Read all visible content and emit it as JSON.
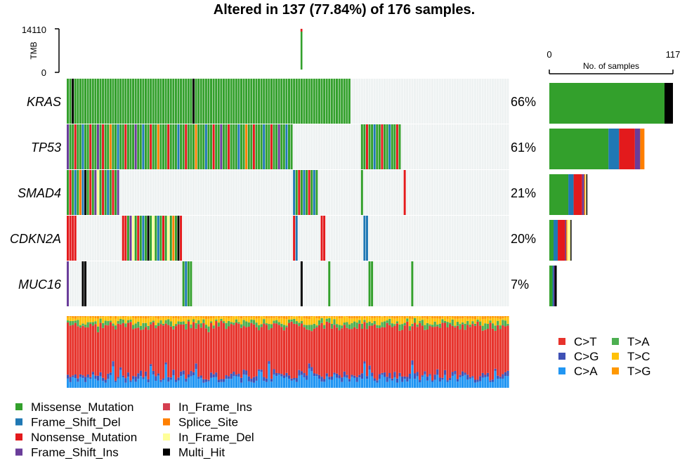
{
  "title": "Altered in 137 (77.84%) of 176 samples.",
  "tmb": {
    "label": "TMB",
    "ticks": [
      "0",
      "14110"
    ],
    "max": 14110,
    "spike_sample": 93,
    "spike_value": 14110
  },
  "samples_axis": {
    "label": "No. of samples",
    "ticks": [
      "0",
      "117"
    ],
    "max": 117
  },
  "colors": {
    "Missense_Mutation": "#33a02c",
    "Frame_Shift_Del": "#1f78b4",
    "Nonsense_Mutation": "#e31a1c",
    "Frame_Shift_Ins": "#6a3d9a",
    "In_Frame_Ins": "#d53e4f",
    "Splice_Site": "#ff7f00",
    "In_Frame_Del": "#ffff99",
    "Multi_Hit": "#000000",
    "C>T": "#e7332c",
    "C>G": "#3f51b5",
    "C>A": "#2196f3",
    "T>A": "#4caf50",
    "T>C": "#ffc107",
    "T>G": "#ff9800",
    "background": "#eef2f2"
  },
  "legend_variants": {
    "col1": [
      "Missense_Mutation",
      "Frame_Shift_Del",
      "Nonsense_Mutation",
      "Frame_Shift_Ins"
    ],
    "col2": [
      "In_Frame_Ins",
      "Splice_Site",
      "In_Frame_Del",
      "Multi_Hit"
    ]
  },
  "legend_titv": {
    "col1": [
      "C>T",
      "C>G",
      "C>A"
    ],
    "col2": [
      "T>A",
      "T>C",
      "T>G"
    ]
  },
  "chart_data": {
    "type": "heatmap",
    "n_samples": 176,
    "genes": [
      {
        "name": "KRAS",
        "pct": "66%",
        "counts": [
          {
            "type": "Missense_Mutation",
            "n": 109
          },
          {
            "type": "Multi_Hit",
            "n": 8
          }
        ],
        "runs": [
          [
            0,
            113,
            "Missense_Mutation"
          ]
        ],
        "events": [
          [
            2,
            "Multi_Hit"
          ],
          [
            50,
            "Multi_Hit"
          ]
        ]
      },
      {
        "name": "TP53",
        "pct": "61%",
        "counts": [
          {
            "type": "Missense_Mutation",
            "n": 56
          },
          {
            "type": "Frame_Shift_Del",
            "n": 10
          },
          {
            "type": "Nonsense_Mutation",
            "n": 15
          },
          {
            "type": "Frame_Shift_Ins",
            "n": 5
          },
          {
            "type": "Splice_Site",
            "n": 4
          }
        ],
        "runs": [
          [
            0,
            90,
            "Missense_Mutation"
          ],
          [
            117,
            133,
            "Missense_Mutation"
          ]
        ],
        "events": [
          [
            0,
            "Frame_Shift_Ins"
          ],
          [
            3,
            "Nonsense_Mutation"
          ],
          [
            6,
            "Frame_Shift_Del"
          ],
          [
            9,
            "Nonsense_Mutation"
          ],
          [
            12,
            "Frame_Shift_Ins"
          ],
          [
            14,
            "Nonsense_Mutation"
          ],
          [
            17,
            "Splice_Site"
          ],
          [
            20,
            "Frame_Shift_Del"
          ],
          [
            23,
            "Nonsense_Mutation"
          ],
          [
            27,
            "Frame_Shift_Ins"
          ],
          [
            30,
            "Frame_Shift_Del"
          ],
          [
            33,
            "Nonsense_Mutation"
          ],
          [
            36,
            "Splice_Site"
          ],
          [
            40,
            "Nonsense_Mutation"
          ],
          [
            44,
            "Frame_Shift_Del"
          ],
          [
            47,
            "Nonsense_Mutation"
          ],
          [
            51,
            "Splice_Site"
          ],
          [
            55,
            "Frame_Shift_Del"
          ],
          [
            58,
            "Nonsense_Mutation"
          ],
          [
            61,
            "Frame_Shift_Ins"
          ],
          [
            64,
            "Nonsense_Mutation"
          ],
          [
            68,
            "Frame_Shift_Del"
          ],
          [
            71,
            "Splice_Site"
          ],
          [
            74,
            "Nonsense_Mutation"
          ],
          [
            78,
            "Frame_Shift_Del"
          ],
          [
            81,
            "Nonsense_Mutation"
          ],
          [
            84,
            "Frame_Shift_Ins"
          ],
          [
            87,
            "Frame_Shift_Del"
          ],
          [
            119,
            "Nonsense_Mutation"
          ],
          [
            122,
            "Frame_Shift_Del"
          ],
          [
            125,
            "Nonsense_Mutation"
          ],
          [
            128,
            "Frame_Shift_Del"
          ],
          [
            131,
            "Nonsense_Mutation"
          ]
        ]
      },
      {
        "name": "SMAD4",
        "pct": "21%",
        "counts": [
          {
            "type": "Missense_Mutation",
            "n": 18
          },
          {
            "type": "Frame_Shift_Del",
            "n": 5
          },
          {
            "type": "Nonsense_Mutation",
            "n": 8
          },
          {
            "type": "Frame_Shift_Ins",
            "n": 2
          },
          {
            "type": "Splice_Site",
            "n": 1
          },
          {
            "type": "In_Frame_Del",
            "n": 1
          },
          {
            "type": "Multi_Hit",
            "n": 1
          }
        ],
        "runs": [
          [
            0,
            21,
            "Missense_Mutation"
          ],
          [
            90,
            100,
            "Missense_Mutation"
          ],
          [
            117,
            118,
            "Missense_Mutation"
          ],
          [
            134,
            135,
            "Missense_Mutation"
          ]
        ],
        "events": [
          [
            1,
            "Nonsense_Mutation"
          ],
          [
            3,
            "Frame_Shift_Del"
          ],
          [
            5,
            "Splice_Site"
          ],
          [
            6,
            "Frame_Shift_Del"
          ],
          [
            7,
            "Multi_Hit"
          ],
          [
            9,
            "Nonsense_Mutation"
          ],
          [
            11,
            "Frame_Shift_Ins"
          ],
          [
            12,
            "In_Frame_Del"
          ],
          [
            14,
            "Nonsense_Mutation"
          ],
          [
            16,
            "Frame_Shift_Del"
          ],
          [
            18,
            "Nonsense_Mutation"
          ],
          [
            20,
            "Frame_Shift_Ins"
          ],
          [
            90,
            "Frame_Shift_Del"
          ],
          [
            92,
            "Nonsense_Mutation"
          ],
          [
            94,
            "Frame_Shift_Del"
          ],
          [
            96,
            "Nonsense_Mutation"
          ],
          [
            98,
            "Frame_Shift_Del"
          ],
          [
            134,
            "Nonsense_Mutation"
          ]
        ]
      },
      {
        "name": "CDKN2A",
        "pct": "20%",
        "counts": [
          {
            "type": "Missense_Mutation",
            "n": 4
          },
          {
            "type": "Frame_Shift_Del",
            "n": 4
          },
          {
            "type": "Nonsense_Mutation",
            "n": 7
          },
          {
            "type": "Frame_Shift_Ins",
            "n": 1
          },
          {
            "type": "Splice_Site",
            "n": 1
          },
          {
            "type": "In_Frame_Del",
            "n": 3
          },
          {
            "type": "Multi_Hit",
            "n": 1
          }
        ],
        "runs": [
          [
            0,
            4,
            "Nonsense_Mutation"
          ],
          [
            22,
            46,
            "Missense_Mutation"
          ],
          [
            90,
            92,
            "Frame_Shift_Del"
          ],
          [
            101,
            103,
            "Nonsense_Mutation"
          ],
          [
            118,
            120,
            "Frame_Shift_Del"
          ]
        ],
        "events": [
          [
            22,
            "Nonsense_Mutation"
          ],
          [
            23,
            "Nonsense_Mutation"
          ],
          [
            25,
            "Frame_Shift_Ins"
          ],
          [
            26,
            "In_Frame_Del"
          ],
          [
            28,
            "Nonsense_Mutation"
          ],
          [
            30,
            "Frame_Shift_Del"
          ],
          [
            32,
            "Multi_Hit"
          ],
          [
            34,
            "In_Frame_Del"
          ],
          [
            36,
            "Frame_Shift_Del"
          ],
          [
            38,
            "Nonsense_Mutation"
          ],
          [
            40,
            "In_Frame_Del"
          ],
          [
            42,
            "Splice_Site"
          ],
          [
            44,
            "Multi_Hit"
          ],
          [
            45,
            "Nonsense_Mutation"
          ],
          [
            90,
            "Nonsense_Mutation"
          ]
        ]
      },
      {
        "name": "MUC16",
        "pct": "7%",
        "counts": [
          {
            "type": "Missense_Mutation",
            "n": 3
          },
          {
            "type": "Frame_Shift_Del",
            "n": 1
          },
          {
            "type": "Frame_Shift_Ins",
            "n": 1
          },
          {
            "type": "Multi_Hit",
            "n": 2
          }
        ],
        "runs": [
          [
            46,
            50,
            "Missense_Mutation"
          ]
        ],
        "events": [
          [
            0,
            "Frame_Shift_Ins"
          ],
          [
            6,
            "Multi_Hit"
          ],
          [
            7,
            "Multi_Hit"
          ],
          [
            47,
            "Frame_Shift_Del"
          ],
          [
            93,
            "Multi_Hit"
          ],
          [
            104,
            "Missense_Mutation"
          ],
          [
            120,
            "Missense_Mutation"
          ],
          [
            121,
            "Missense_Mutation"
          ],
          [
            137,
            "Missense_Mutation"
          ]
        ]
      }
    ],
    "titv_fractions": {
      "classes": [
        "C>A",
        "C>G",
        "C>T",
        "T>A",
        "T>C",
        "T>G"
      ],
      "mean": [
        0.12,
        0.05,
        0.67,
        0.06,
        0.07,
        0.03
      ]
    }
  }
}
